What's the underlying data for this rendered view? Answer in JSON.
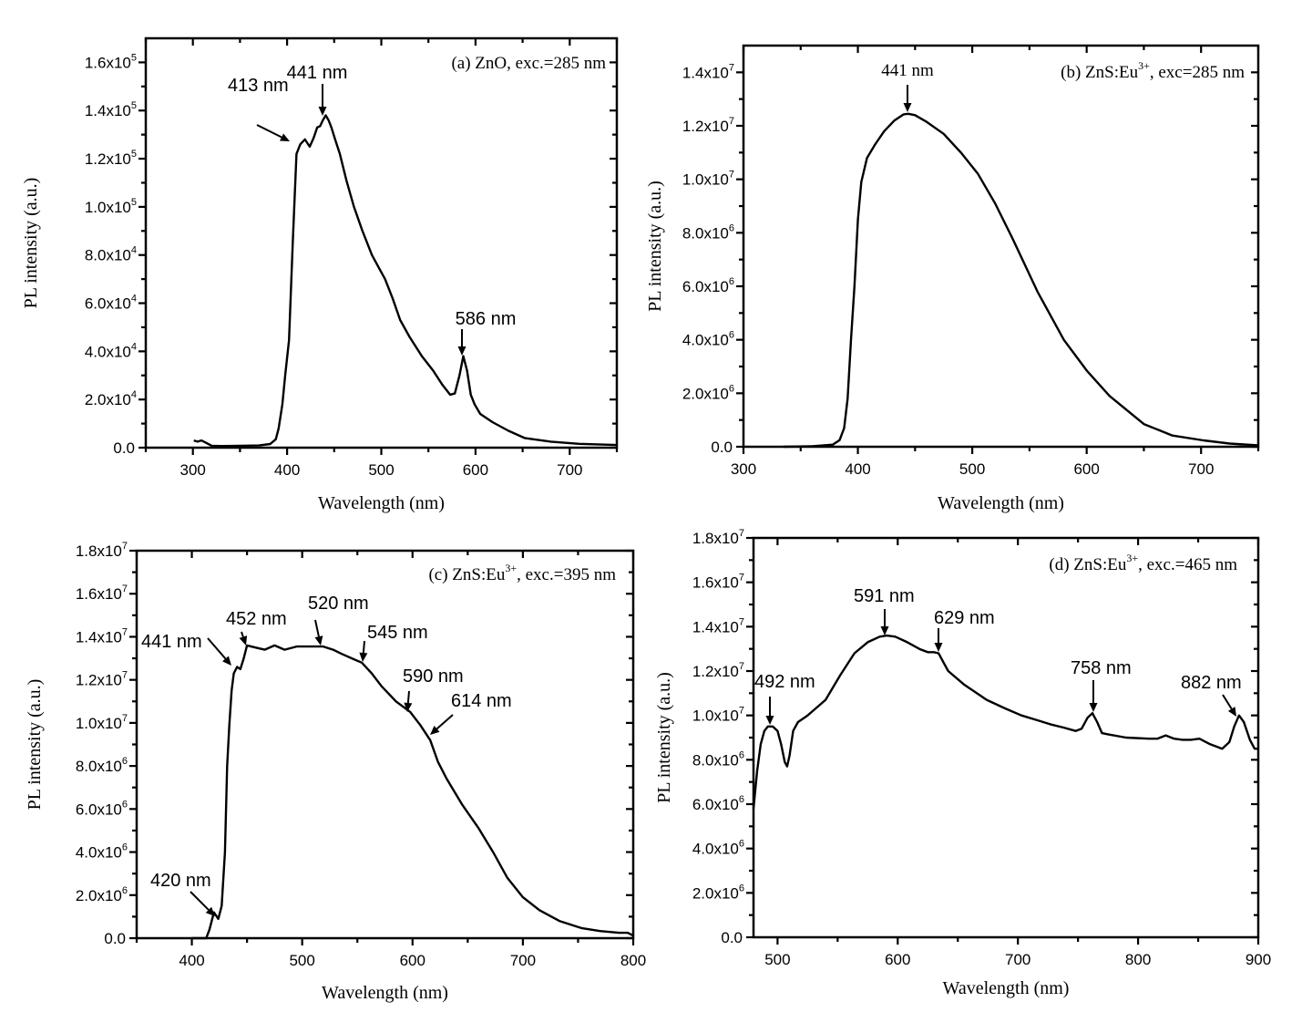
{
  "figure": {
    "panel_count": 4
  },
  "chart_data": [
    {
      "id": "a",
      "type": "line",
      "title": "(a) ZnO, exc.=285 nm",
      "title_parts": {
        "pre": "(a) ZnO, exc.=285 nm",
        "sup": "",
        "post": ""
      },
      "xlabel": "Wavelength (nm)",
      "ylabel": "PL intensity (a.u.)",
      "xlim": [
        250,
        750
      ],
      "ylim": [
        0,
        170000
      ],
      "x_ticks": [
        300,
        400,
        500,
        600,
        700
      ],
      "x_minor": [
        250,
        350,
        450,
        550,
        650,
        750
      ],
      "y_ticks": [
        {
          "value": 0,
          "mant": "0.0",
          "exp": ""
        },
        {
          "value": 20000,
          "mant": "2.0x10",
          "exp": "4"
        },
        {
          "value": 40000,
          "mant": "4.0x10",
          "exp": "4"
        },
        {
          "value": 60000,
          "mant": "6.0x10",
          "exp": "4"
        },
        {
          "value": 80000,
          "mant": "8.0x10",
          "exp": "4"
        },
        {
          "value": 100000,
          "mant": "1.0x10",
          "exp": "5"
        },
        {
          "value": 120000,
          "mant": "1.2x10",
          "exp": "5"
        },
        {
          "value": 140000,
          "mant": "1.4x10",
          "exp": "5"
        },
        {
          "value": 160000,
          "mant": "1.6x10",
          "exp": "5"
        }
      ],
      "grid": false,
      "series": [
        {
          "name": "ZnO exc 285 nm",
          "x": [
            301,
            305,
            309,
            314,
            320,
            330,
            350,
            370,
            382,
            388,
            391,
            395,
            398,
            402,
            406,
            410,
            414,
            419,
            424,
            428,
            432,
            435,
            438,
            441,
            444,
            447,
            451,
            456,
            463,
            471,
            480,
            490,
            497,
            504,
            512,
            520,
            530,
            543,
            555,
            565,
            573,
            578,
            583,
            587,
            591,
            595,
            599,
            605,
            618,
            635,
            652,
            680,
            710,
            750
          ],
          "y": [
            3000,
            2500,
            3000,
            2000,
            800,
            700,
            800,
            900,
            1500,
            3500,
            8000,
            18000,
            30000,
            44600,
            85000,
            122000,
            126000,
            128000,
            125000,
            128500,
            133000,
            133500,
            136000,
            138000,
            136000,
            133000,
            128000,
            122000,
            111000,
            100000,
            90000,
            80000,
            75000,
            70000,
            62000,
            53000,
            46000,
            38000,
            32000,
            26000,
            22000,
            22500,
            30000,
            38000,
            32000,
            22000,
            18000,
            14000,
            10600,
            7000,
            4000,
            2500,
            1600,
            1100
          ]
        }
      ],
      "annotations": [
        {
          "text": "413 nm",
          "x": 413,
          "y": 128000
        },
        {
          "text": "441 nm",
          "x": 441,
          "y": 138000
        },
        {
          "text": "586 nm",
          "x": 587,
          "y": 38000
        }
      ]
    },
    {
      "id": "b",
      "type": "line",
      "title": "(b) ZnS:Eu3+, exc=285 nm",
      "title_parts": {
        "pre": "(b) ZnS:Eu",
        "sup": "3+",
        "post": ", exc=285 nm"
      },
      "xlabel": "Wavelength (nm)",
      "ylabel": "PL intensity (a.u.)",
      "xlim": [
        300,
        750
      ],
      "ylim": [
        0,
        15000000
      ],
      "x_ticks": [
        300,
        400,
        500,
        600,
        700
      ],
      "x_minor": [
        350,
        450,
        550,
        650,
        750
      ],
      "y_ticks": [
        {
          "value": 0,
          "mant": "0.0",
          "exp": ""
        },
        {
          "value": 2000000,
          "mant": "2.0x10",
          "exp": "6"
        },
        {
          "value": 4000000,
          "mant": "4.0x10",
          "exp": "6"
        },
        {
          "value": 6000000,
          "mant": "6.0x10",
          "exp": "6"
        },
        {
          "value": 8000000,
          "mant": "8.0x10",
          "exp": "6"
        },
        {
          "value": 10000000,
          "mant": "1.0x10",
          "exp": "7"
        },
        {
          "value": 12000000,
          "mant": "1.2x10",
          "exp": "7"
        },
        {
          "value": 14000000,
          "mant": "1.4x10",
          "exp": "7"
        }
      ],
      "grid": false,
      "series": [
        {
          "name": "ZnS:Eu3+ exc 285 nm",
          "x": [
            335,
            360,
            378,
            384,
            388,
            391,
            394,
            397,
            400,
            403,
            408,
            415,
            423,
            432,
            440,
            444,
            450,
            460,
            475,
            490,
            505,
            520,
            535,
            557,
            580,
            600,
            620,
            650,
            675,
            702,
            725,
            750
          ],
          "y": [
            0,
            20000,
            80000,
            250000,
            700000,
            1800000,
            4000000,
            6000000,
            8500000,
            9900000,
            10800000,
            11300000,
            11800000,
            12200000,
            12430000,
            12450000,
            12400000,
            12150000,
            11700000,
            11000000,
            10200000,
            9100000,
            7800000,
            5800000,
            4000000,
            2850000,
            1900000,
            850000,
            420000,
            240000,
            120000,
            50000
          ]
        }
      ],
      "annotations": [
        {
          "text": "441 nm",
          "x": 444,
          "y": 12450000
        }
      ]
    },
    {
      "id": "c",
      "type": "line",
      "title": "(c) ZnS:Eu3+, exc.=395 nm",
      "title_parts": {
        "pre": "(c) ZnS:Eu",
        "sup": "3+",
        "post": ", exc.=395 nm"
      },
      "xlabel": "Wavelength (nm)",
      "ylabel": "PL intensity (a.u.)",
      "xlim": [
        350,
        800
      ],
      "ylim": [
        0,
        18000000
      ],
      "x_ticks": [
        400,
        500,
        600,
        700,
        800
      ],
      "x_minor": [
        350,
        450,
        550,
        650,
        750
      ],
      "y_ticks": [
        {
          "value": 0,
          "mant": "0.0",
          "exp": ""
        },
        {
          "value": 2000000,
          "mant": "2.0x10",
          "exp": "6"
        },
        {
          "value": 4000000,
          "mant": "4.0x10",
          "exp": "6"
        },
        {
          "value": 6000000,
          "mant": "6.0x10",
          "exp": "6"
        },
        {
          "value": 8000000,
          "mant": "8.0x10",
          "exp": "6"
        },
        {
          "value": 10000000,
          "mant": "1.0x10",
          "exp": "7"
        },
        {
          "value": 12000000,
          "mant": "1.2x10",
          "exp": "7"
        },
        {
          "value": 14000000,
          "mant": "1.4x10",
          "exp": "7"
        },
        {
          "value": 16000000,
          "mant": "1.6x10",
          "exp": "7"
        },
        {
          "value": 18000000,
          "mant": "1.8x10",
          "exp": "7"
        }
      ],
      "grid": false,
      "series": [
        {
          "name": "ZnS:Eu3+ exc 395 nm",
          "x": [
            400,
            413,
            416,
            420,
            424,
            427,
            430,
            432,
            434,
            436,
            438,
            441,
            444,
            447,
            450,
            458,
            466,
            475,
            484,
            495,
            505,
            519,
            528,
            536,
            545,
            554,
            563,
            572,
            585,
            598,
            607,
            616,
            623,
            631,
            645,
            660,
            673,
            686,
            700,
            715,
            733,
            753,
            770,
            787,
            795,
            800
          ],
          "y": [
            0,
            0,
            400000,
            1200000,
            900000,
            1500000,
            4000000,
            8000000,
            9900000,
            11500000,
            12300000,
            12600000,
            12500000,
            13000000,
            13600000,
            13500000,
            13400000,
            13600000,
            13400000,
            13550000,
            13550000,
            13550000,
            13400000,
            13200000,
            13000000,
            12800000,
            12300000,
            11700000,
            11000000,
            10500000,
            9900000,
            9200000,
            8200000,
            7400000,
            6200000,
            5100000,
            4000000,
            2800000,
            1900000,
            1300000,
            800000,
            470000,
            330000,
            250000,
            250000,
            120000
          ]
        }
      ],
      "annotations": [
        {
          "text": "420 nm",
          "x": 421,
          "y": 1100000
        },
        {
          "text": "441 nm",
          "x": 440,
          "y": 12600000
        },
        {
          "text": "452 nm",
          "x": 450,
          "y": 13600000
        },
        {
          "text": "520 nm",
          "x": 520,
          "y": 13550000
        },
        {
          "text": "545 nm",
          "x": 554,
          "y": 12800000
        },
        {
          "text": "590 nm",
          "x": 598,
          "y": 10500000
        },
        {
          "text": "614 nm",
          "x": 616,
          "y": 9200000
        }
      ]
    },
    {
      "id": "d",
      "type": "line",
      "title": "(d) ZnS:Eu3+, exc.=465 nm",
      "title_parts": {
        "pre": "(d) ZnS:Eu",
        "sup": "3+",
        "post": ", exc.=465 nm"
      },
      "xlabel": "Wavelength (nm)",
      "ylabel": "PL intensity (a.u.)",
      "xlim": [
        480,
        900
      ],
      "ylim": [
        0,
        18000000
      ],
      "x_ticks": [
        500,
        600,
        700,
        800,
        900
      ],
      "x_minor": [
        550,
        650,
        750,
        850
      ],
      "y_ticks": [
        {
          "value": 0,
          "mant": "0.0",
          "exp": ""
        },
        {
          "value": 2000000,
          "mant": "2.0x10",
          "exp": "6"
        },
        {
          "value": 4000000,
          "mant": "4.0x10",
          "exp": "6"
        },
        {
          "value": 6000000,
          "mant": "6.0x10",
          "exp": "6"
        },
        {
          "value": 8000000,
          "mant": "8.0x10",
          "exp": "6"
        },
        {
          "value": 10000000,
          "mant": "1.0x10",
          "exp": "7"
        },
        {
          "value": 12000000,
          "mant": "1.2x10",
          "exp": "7"
        },
        {
          "value": 14000000,
          "mant": "1.4x10",
          "exp": "7"
        },
        {
          "value": 16000000,
          "mant": "1.6x10",
          "exp": "7"
        },
        {
          "value": 18000000,
          "mant": "1.8x10",
          "exp": "7"
        }
      ],
      "grid": false,
      "series": [
        {
          "name": "ZnS:Eu3+ exc 465 nm",
          "x": [
            480,
            483,
            486,
            489,
            492,
            496,
            500,
            503,
            506,
            508,
            510,
            513,
            517,
            525,
            540,
            552,
            564,
            575,
            585,
            591,
            598,
            608,
            618,
            625,
            630,
            634,
            638,
            642,
            655,
            674,
            690,
            703,
            715,
            727,
            738,
            748,
            753,
            758,
            762,
            766,
            770,
            775,
            790,
            809,
            816,
            823,
            830,
            837,
            844,
            851,
            860,
            870,
            876,
            880,
            884,
            888,
            893,
            897,
            900
          ],
          "y": [
            5800000,
            7500000,
            8700000,
            9300000,
            9500000,
            9500000,
            9300000,
            8700000,
            7900000,
            7700000,
            8200000,
            9300000,
            9700000,
            10000000,
            10700000,
            11800000,
            12800000,
            13300000,
            13550000,
            13600000,
            13550000,
            13300000,
            13000000,
            12850000,
            12850000,
            12800000,
            12400000,
            12000000,
            11400000,
            10700000,
            10300000,
            10000000,
            9800000,
            9600000,
            9450000,
            9300000,
            9400000,
            9900000,
            10100000,
            9700000,
            9200000,
            9150000,
            9000000,
            8950000,
            8950000,
            9100000,
            8950000,
            8900000,
            8900000,
            8950000,
            8700000,
            8500000,
            8800000,
            9500000,
            10000000,
            9700000,
            8900000,
            8500000,
            8500000
          ]
        }
      ],
      "annotations": [
        {
          "text": "492 nm",
          "x": 494,
          "y": 9500000
        },
        {
          "text": "591 nm",
          "x": 591,
          "y": 13600000
        },
        {
          "text": "629 nm",
          "x": 633,
          "y": 12800000
        },
        {
          "text": "758 nm",
          "x": 762,
          "y": 10100000
        },
        {
          "text": "882 nm",
          "x": 884,
          "y": 10000000
        }
      ]
    }
  ]
}
